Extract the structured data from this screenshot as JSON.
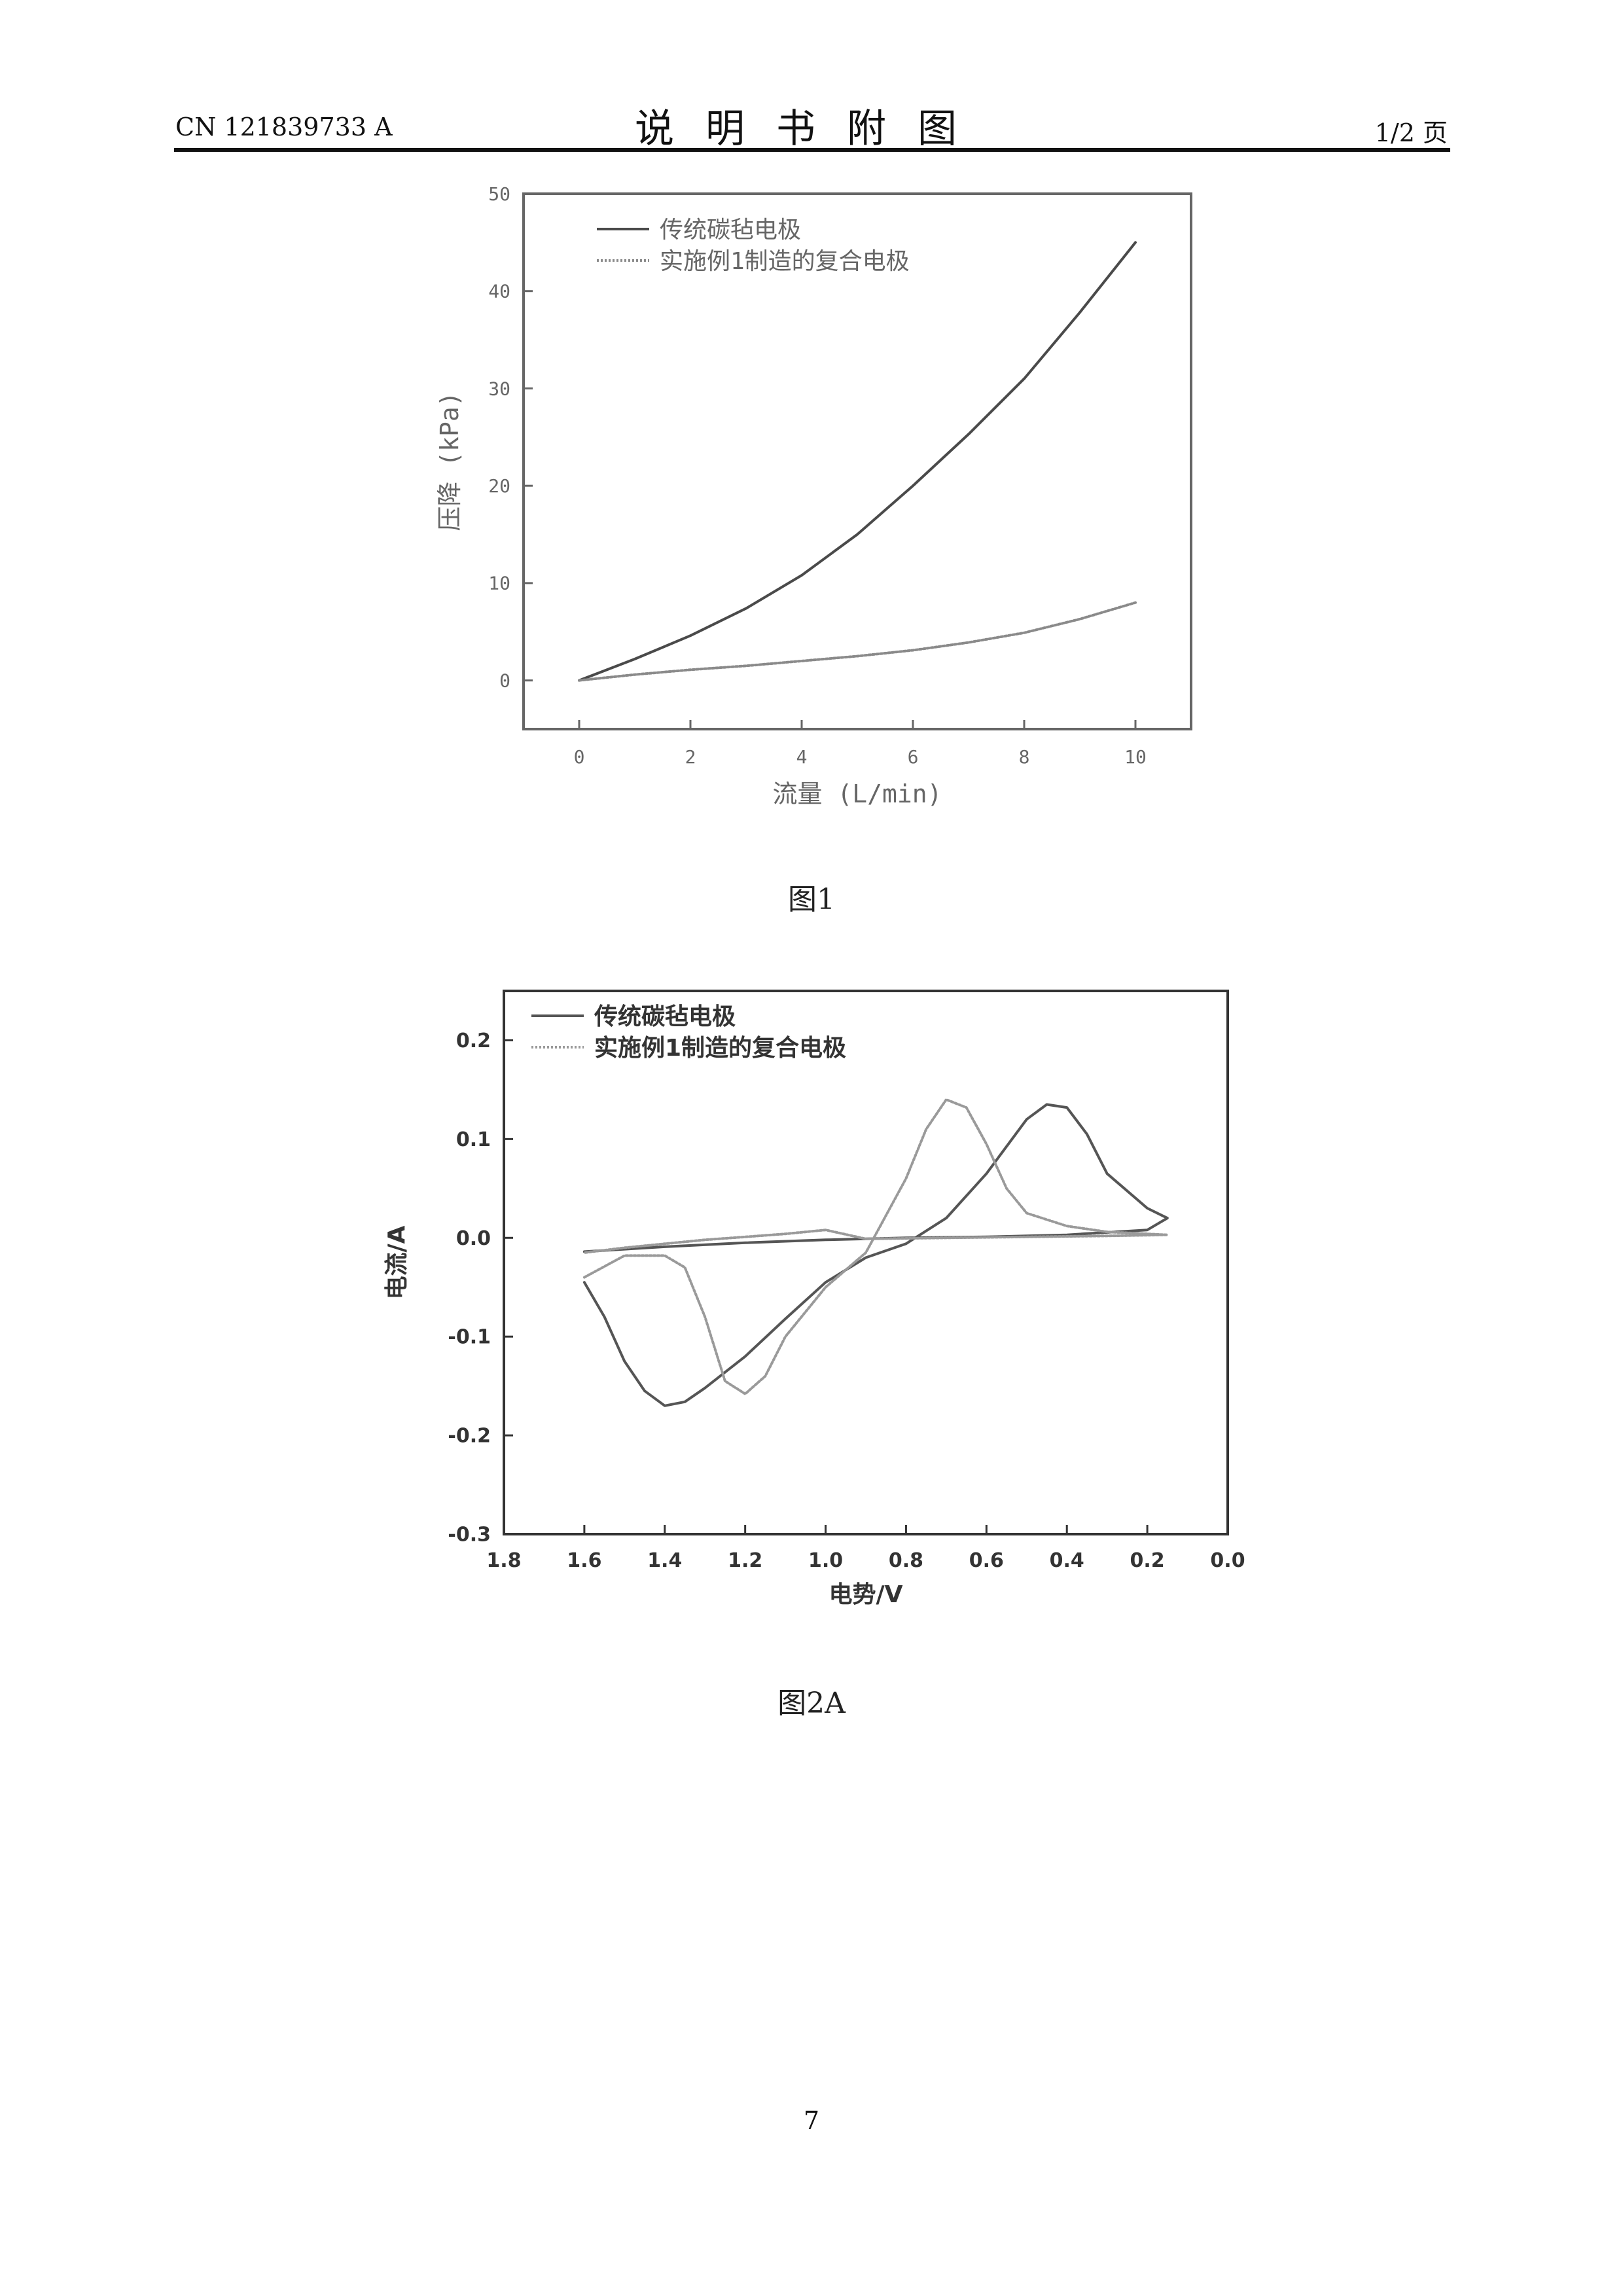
{
  "header": {
    "doc_number": "CN 121839733 A",
    "title": "说明书附图",
    "page_fraction": "1/2 页"
  },
  "figures": [
    {
      "caption": "图1"
    },
    {
      "caption": "图2A"
    }
  ],
  "page_number": "7",
  "chart_data": [
    {
      "type": "line",
      "title": "",
      "xlabel": "流量 (L/min)",
      "ylabel": "压降 (kPa)",
      "xlim": [
        -1,
        11
      ],
      "ylim": [
        -5,
        50
      ],
      "x_ticks": [
        0,
        2,
        4,
        6,
        8,
        10
      ],
      "y_ticks": [
        0,
        10,
        20,
        30,
        40,
        50
      ],
      "legend_position": "top-left",
      "grid": false,
      "colors": {
        "conventional": "#4a4a4a",
        "composite": "#8a8a8a"
      },
      "series": [
        {
          "name": "传统碳毡电极",
          "style": "solid",
          "x": [
            0,
            1,
            2,
            3,
            4,
            5,
            6,
            7,
            8,
            9,
            10
          ],
          "y": [
            0,
            2.2,
            4.6,
            7.4,
            10.8,
            15,
            20,
            25.3,
            31,
            37.8,
            45
          ]
        },
        {
          "name": "实施例1制造的复合电极",
          "style": "dotted",
          "x": [
            0,
            1,
            2,
            3,
            4,
            5,
            6,
            7,
            8,
            9,
            10
          ],
          "y": [
            0,
            0.6,
            1.1,
            1.5,
            2.0,
            2.5,
            3.1,
            3.9,
            4.9,
            6.3,
            8.0
          ]
        }
      ]
    },
    {
      "type": "line",
      "title": "",
      "xlabel": "电势/V",
      "ylabel": "电流/A",
      "xlim": [
        1.8,
        0.0
      ],
      "ylim": [
        -0.3,
        0.25
      ],
      "x_ticks": [
        1.8,
        1.6,
        1.4,
        1.2,
        1.0,
        0.8,
        0.6,
        0.4,
        0.2,
        0.0
      ],
      "y_ticks": [
        0.2,
        0.1,
        0.0,
        -0.1,
        -0.2,
        -0.3
      ],
      "x_reversed": true,
      "legend_position": "top-left",
      "grid": false,
      "colors": {
        "conventional": "#555555",
        "composite": "#9a9a9a"
      },
      "series": [
        {
          "name": "传统碳毡电极",
          "style": "solid",
          "x": [
            1.6,
            1.55,
            1.5,
            1.45,
            1.4,
            1.35,
            1.3,
            1.2,
            1.1,
            1.0,
            0.9,
            0.8,
            0.7,
            0.6,
            0.5,
            0.45,
            0.4,
            0.35,
            0.3,
            0.2,
            0.15,
            0.2,
            0.4,
            0.6,
            0.8,
            1.0,
            1.2,
            1.4,
            1.6
          ],
          "y": [
            -0.045,
            -0.08,
            -0.125,
            -0.155,
            -0.17,
            -0.166,
            -0.152,
            -0.12,
            -0.082,
            -0.045,
            -0.02,
            -0.006,
            0.02,
            0.065,
            0.12,
            0.135,
            0.132,
            0.105,
            0.065,
            0.03,
            0.02,
            0.008,
            0.003,
            0.001,
            0.0,
            -0.002,
            -0.005,
            -0.009,
            -0.014
          ]
        },
        {
          "name": "实施例1制造的复合电极",
          "style": "dotted",
          "x": [
            1.6,
            1.5,
            1.4,
            1.35,
            1.3,
            1.25,
            1.2,
            1.15,
            1.1,
            1.0,
            0.9,
            0.8,
            0.75,
            0.7,
            0.65,
            0.6,
            0.55,
            0.5,
            0.4,
            0.3,
            0.2,
            0.15,
            0.3,
            0.5,
            0.7,
            0.9,
            1.0,
            1.1,
            1.2,
            1.3,
            1.4,
            1.5,
            1.6
          ],
          "y": [
            -0.04,
            -0.018,
            -0.018,
            -0.03,
            -0.08,
            -0.145,
            -0.158,
            -0.14,
            -0.1,
            -0.05,
            -0.015,
            0.06,
            0.11,
            0.14,
            0.132,
            0.095,
            0.05,
            0.025,
            0.012,
            0.006,
            0.004,
            0.003,
            0.002,
            0.001,
            0.0,
            -0.001,
            0.008,
            0.004,
            0.001,
            -0.002,
            -0.006,
            -0.01,
            -0.015
          ]
        }
      ]
    }
  ]
}
